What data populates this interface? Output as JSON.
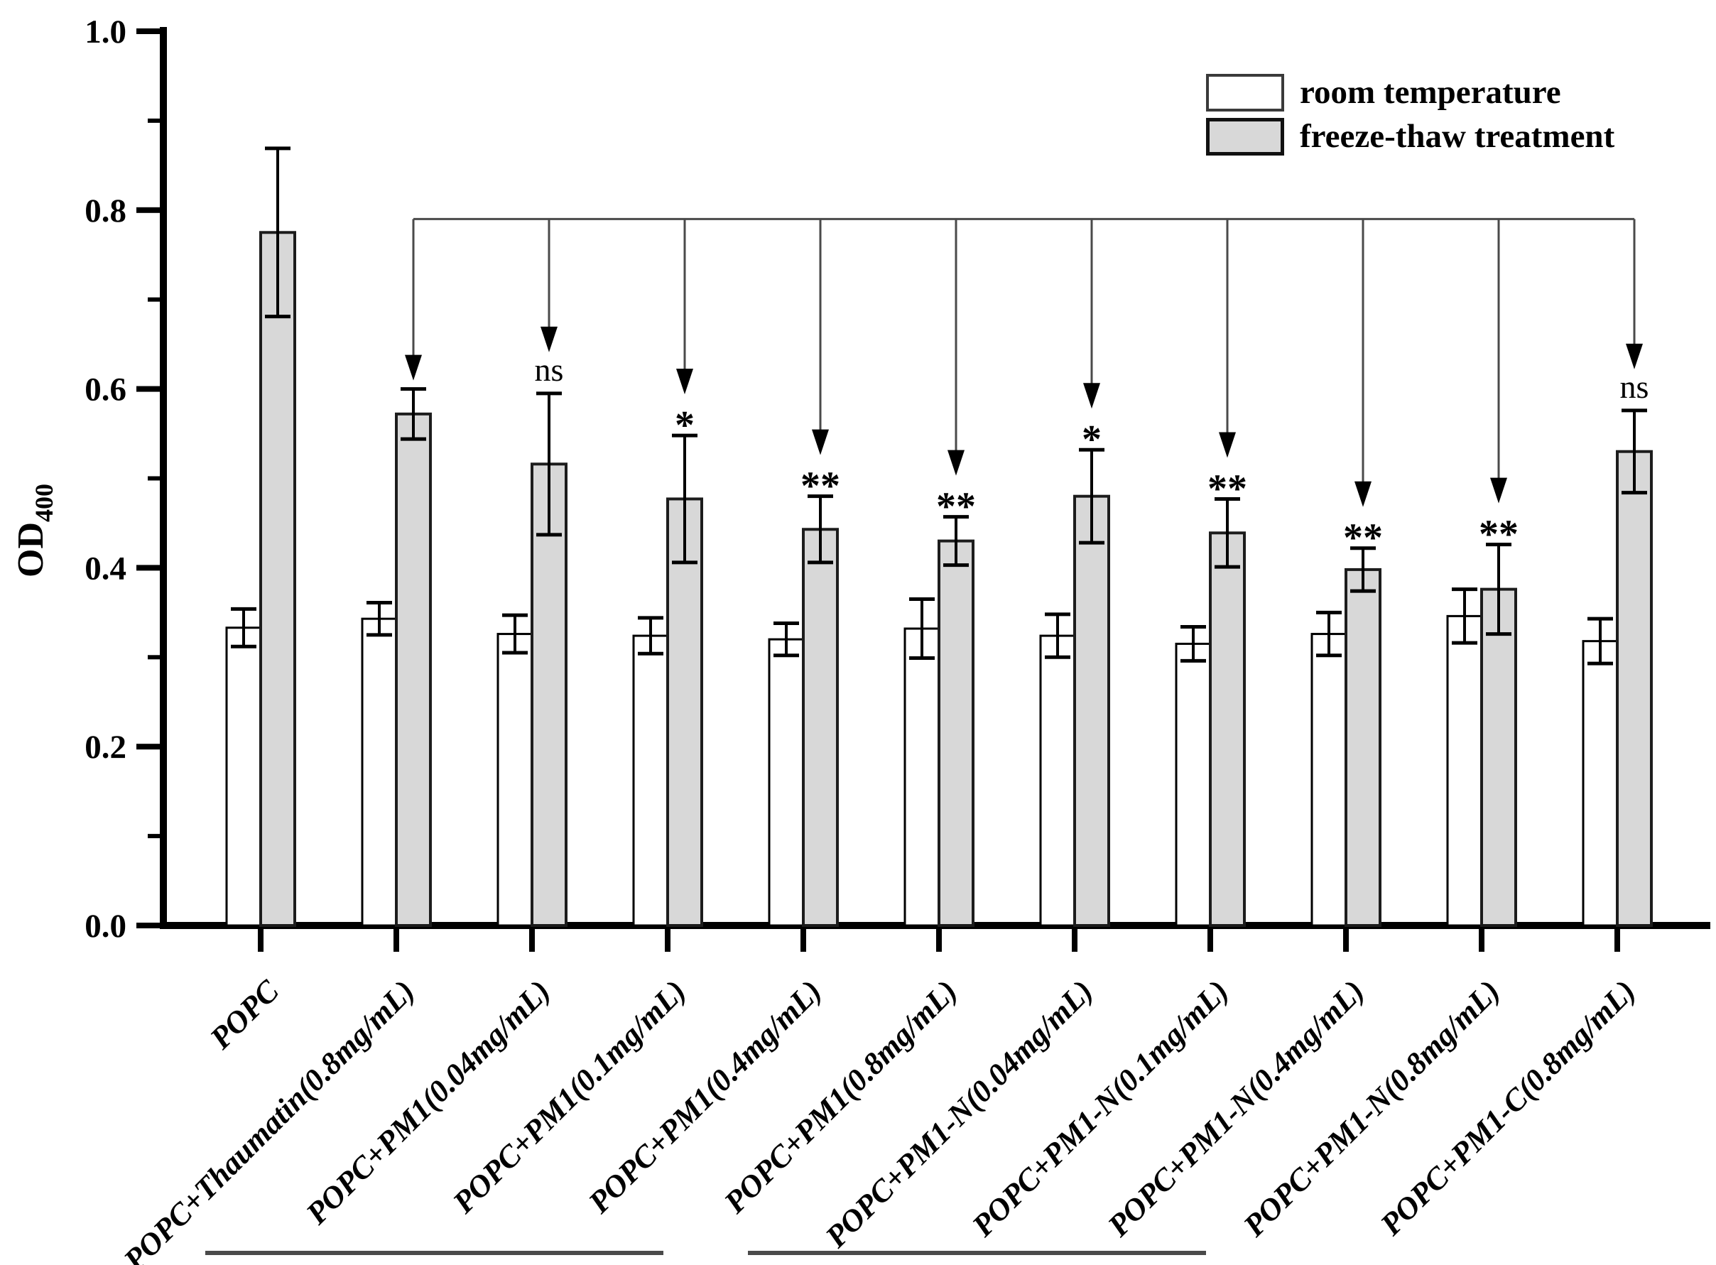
{
  "figure": {
    "background": "#ffffff",
    "ink_color": "#000000",
    "bar_fill_gray": "#d8d8d8",
    "bar_fill_white": "#ffffff",
    "connector_color": "#4a4a4a"
  },
  "y_axis": {
    "label_main": "OD",
    "label_sub": "400",
    "tick_labels": [
      "0.0",
      "0.2",
      "0.4",
      "0.6",
      "0.8",
      "1.0"
    ]
  },
  "legend": {
    "items": [
      {
        "label": "room temperature",
        "fill": "#ffffff"
      },
      {
        "label": "freeze-thaw treatment",
        "fill": "#d8d8d8"
      }
    ]
  },
  "chart_data": {
    "type": "bar",
    "title": "",
    "xlabel": "",
    "ylabel": "OD400",
    "ylim": [
      0.0,
      1.0
    ],
    "yticks_major": [
      0.0,
      0.2,
      0.4,
      0.6,
      0.8,
      1.0
    ],
    "yticks_minor": [
      0.1,
      0.3,
      0.5,
      0.7,
      0.9
    ],
    "grid": false,
    "legend_position": "upper right",
    "categories": [
      "POPC",
      "POPC+Thaumatin(0.8mg/mL)",
      "POPC+PM1(0.04mg/mL)",
      "POPC+PM1(0.1mg/mL)",
      "POPC+PM1(0.4mg/mL)",
      "POPC+PM1(0.8mg/mL)",
      "POPC+PM1-N(0.04mg/mL)",
      "POPC+PM1-N(0.1mg/mL)",
      "POPC+PM1-N(0.4mg/mL)",
      "POPC+PM1-N(0.8mg/mL)",
      "POPC+PM1-C(0.8mg/mL)"
    ],
    "series": [
      {
        "name": "room temperature",
        "fill": "#ffffff",
        "values": [
          0.333,
          0.343,
          0.326,
          0.324,
          0.32,
          0.332,
          0.324,
          0.315,
          0.326,
          0.346,
          0.318
        ],
        "errors": [
          0.021,
          0.018,
          0.021,
          0.02,
          0.018,
          0.033,
          0.024,
          0.019,
          0.024,
          0.03,
          0.025
        ]
      },
      {
        "name": "freeze-thaw treatment",
        "fill": "#d8d8d8",
        "values": [
          0.775,
          0.572,
          0.516,
          0.477,
          0.443,
          0.43,
          0.48,
          0.439,
          0.398,
          0.376,
          0.53
        ],
        "errors": [
          0.094,
          0.028,
          0.079,
          0.071,
          0.037,
          0.027,
          0.052,
          0.038,
          0.024,
          0.05,
          0.046
        ]
      }
    ],
    "significance": {
      "reference_category": "POPC",
      "line_level": 0.79,
      "markers": [
        null,
        "",
        "ns",
        "*",
        "**",
        "**",
        "*",
        "**",
        "**",
        "**",
        "ns"
      ]
    },
    "label_underlines": [
      {
        "from": 2,
        "to": 5
      },
      {
        "from": 6,
        "to": 9
      }
    ]
  }
}
